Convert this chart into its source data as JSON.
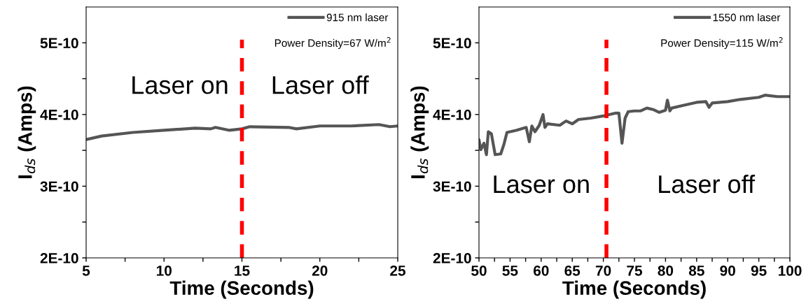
{
  "chart_data": [
    {
      "type": "line",
      "xlabel": "Time (Seconds)",
      "ylabel": "I$_{ds}$ (Amps)",
      "xlim": [
        5,
        25
      ],
      "ylim": [
        2e-10,
        5.5e-10
      ],
      "xticks": [
        5,
        {
          "value": 7.5,
          "label": null
        },
        10,
        {
          "value": 12.5,
          "label": null
        },
        15,
        {
          "value": 17.5,
          "label": null
        },
        20,
        {
          "value": 22.5,
          "label": null
        },
        25
      ],
      "yticks": [
        {
          "value": 2e-10,
          "label": "2E-10"
        },
        {
          "value": 2.5e-10,
          "label": null
        },
        {
          "value": 3e-10,
          "label": "3E-10"
        },
        {
          "value": 3.5e-10,
          "label": null
        },
        {
          "value": 4e-10,
          "label": "4E-10"
        },
        {
          "value": 4.5e-10,
          "label": null
        },
        {
          "value": 5e-10,
          "label": "5E-10"
        }
      ],
      "legend": "top right",
      "grid": false,
      "series": [
        {
          "name": "915 nm laser",
          "color": "#555555",
          "x": [
            5,
            6,
            8,
            10,
            12,
            13,
            13.3,
            14.2,
            15,
            15.5,
            18,
            18.5,
            20,
            22,
            23.8,
            24.5,
            25
          ],
          "values": [
            3.65e-10,
            3.7e-10,
            3.75e-10,
            3.78e-10,
            3.81e-10,
            3.8e-10,
            3.82e-10,
            3.78e-10,
            3.8e-10,
            3.83e-10,
            3.82e-10,
            3.8e-10,
            3.84e-10,
            3.84e-10,
            3.86e-10,
            3.83e-10,
            3.84e-10
          ]
        }
      ],
      "ref_lines": [
        {
          "axis": "x",
          "value": 15,
          "label": null,
          "color": "#ff0000",
          "line_style": "dashed"
        }
      ],
      "annotations": [
        "Power Density=67 W/m$^{2}$",
        "Laser on",
        "Laser off"
      ]
    },
    {
      "type": "line",
      "xlabel": "Time (Seconds)",
      "ylabel": "I$_{ds}$ (Amps)",
      "xlim": [
        50,
        100
      ],
      "ylim": [
        2e-10,
        5.5e-10
      ],
      "xticks": [
        50,
        {
          "value": 52.5,
          "label": null
        },
        55,
        {
          "value": 57.5,
          "label": null
        },
        60,
        {
          "value": 62.5,
          "label": null
        },
        65,
        {
          "value": 67.5,
          "label": null
        },
        70,
        {
          "value": 72.5,
          "label": null
        },
        75,
        {
          "value": 77.5,
          "label": null
        },
        80,
        {
          "value": 82.5,
          "label": null
        },
        85,
        {
          "value": 87.5,
          "label": null
        },
        90,
        {
          "value": 92.5,
          "label": null
        },
        95,
        {
          "value": 97.5,
          "label": null
        },
        100
      ],
      "yticks": [
        {
          "value": 2e-10,
          "label": "2E-10"
        },
        {
          "value": 2.5e-10,
          "label": null
        },
        {
          "value": 3e-10,
          "label": "3E-10"
        },
        {
          "value": 3.5e-10,
          "label": null
        },
        {
          "value": 4e-10,
          "label": "4E-10"
        },
        {
          "value": 4.5e-10,
          "label": null
        },
        {
          "value": 5e-10,
          "label": "5E-10"
        }
      ],
      "legend": "top right",
      "grid": false,
      "series": [
        {
          "name": "1550 nm laser",
          "color": "#555555",
          "x": [
            50,
            50.3,
            50.8,
            51.2,
            51.5,
            52,
            52.6,
            53.5,
            54,
            54.5,
            56,
            57.6,
            58.1,
            58.5,
            59,
            59.7,
            60.3,
            60.6,
            61,
            63,
            64,
            65,
            66,
            68,
            70,
            72,
            72.5,
            73,
            73.5,
            74,
            75,
            76,
            77,
            78,
            79,
            80,
            80.3,
            80.7,
            81,
            83,
            85,
            86.5,
            87,
            87.5,
            90,
            92,
            95,
            96,
            98,
            100
          ],
          "values": [
            3.65e-10,
            3.51e-10,
            3.6e-10,
            3.44e-10,
            3.76e-10,
            3.73e-10,
            3.44e-10,
            3.45e-10,
            3.58e-10,
            3.75e-10,
            3.78e-10,
            3.82e-10,
            3.62e-10,
            3.84e-10,
            3.76e-10,
            3.85e-10,
            4e-10,
            3.82e-10,
            3.87e-10,
            3.85e-10,
            3.91e-10,
            3.87e-10,
            3.93e-10,
            3.95e-10,
            3.98e-10,
            4.02e-10,
            4.02e-10,
            3.6e-10,
            3.95e-10,
            4.04e-10,
            4.05e-10,
            4.05e-10,
            4.09e-10,
            4.07e-10,
            4.03e-10,
            4.06e-10,
            4.2e-10,
            4.05e-10,
            4.09e-10,
            4.13e-10,
            4.17e-10,
            4.18e-10,
            4.1e-10,
            4.16e-10,
            4.18e-10,
            4.21e-10,
            4.24e-10,
            4.27e-10,
            4.25e-10,
            4.25e-10
          ]
        }
      ],
      "ref_lines": [
        {
          "axis": "x",
          "value": 70.5,
          "label": null,
          "color": "#ff0000",
          "line_style": "dashed"
        }
      ],
      "annotations": [
        "Power Density=115 W/m$^{2}$",
        "Laser on",
        "Laser off"
      ]
    }
  ]
}
